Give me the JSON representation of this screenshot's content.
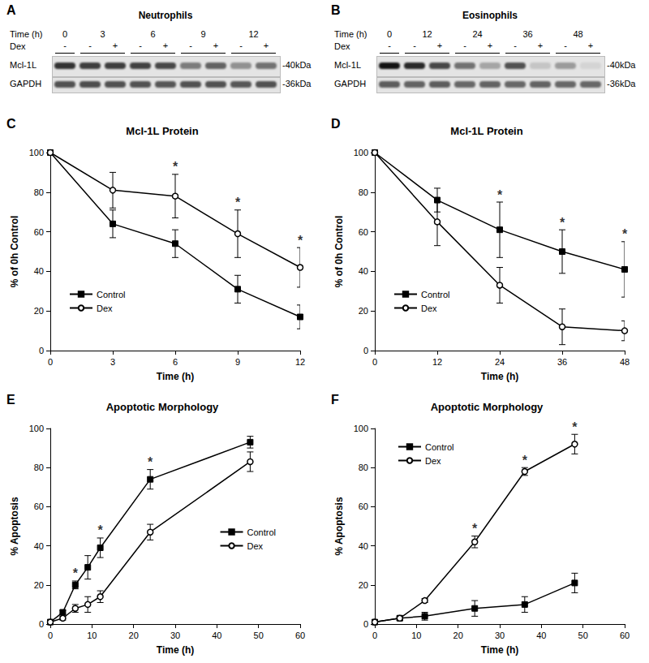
{
  "blots": [
    {
      "panel": "A",
      "title": "Neutrophils",
      "time_label": "Time (h)",
      "times": [
        0,
        3,
        6,
        9,
        12
      ],
      "treatment_label": "Dex",
      "lanes": [
        "-",
        "-",
        "+",
        "-",
        "+",
        "-",
        "+",
        "-",
        "+"
      ],
      "rows": [
        {
          "label": "Mcl-1L",
          "size": "-40kDa"
        },
        {
          "label": "GAPDH",
          "size": "-36kDa"
        }
      ]
    },
    {
      "panel": "B",
      "title": "Eosinophils",
      "time_label": "Time (h)",
      "times": [
        0,
        12,
        24,
        36,
        48
      ],
      "treatment_label": "Dex",
      "lanes": [
        "-",
        "-",
        "+",
        "-",
        "+",
        "-",
        "+",
        "-",
        "+"
      ],
      "rows": [
        {
          "label": "Mcl-1L",
          "size": "-40kDa"
        },
        {
          "label": "GAPDH",
          "size": "-36kDa"
        }
      ]
    }
  ],
  "chart_data": [
    {
      "panel": "C",
      "type": "line",
      "title": "Mcl-1L Protein",
      "x_label": "Time (h)",
      "y_label": "% of 0h Control",
      "xlim": [
        0,
        12
      ],
      "xticks": [
        0,
        3,
        6,
        9,
        12
      ],
      "ylim": [
        0,
        100
      ],
      "yticks": [
        0,
        20,
        40,
        60,
        80,
        100
      ],
      "grid": false,
      "legend": "lower left",
      "series": [
        {
          "name": "Control",
          "color": "#000000",
          "marker": "square",
          "x": [
            0,
            3,
            6,
            9,
            12
          ],
          "values": [
            100,
            64,
            54,
            31,
            17
          ],
          "error": [
            0,
            7,
            7,
            7,
            6
          ]
        },
        {
          "name": "Dex",
          "color": "#000000",
          "marker": "open_circle",
          "x": [
            0,
            3,
            6,
            9,
            12
          ],
          "values": [
            100,
            81,
            78,
            59,
            42
          ],
          "error": [
            0,
            9,
            11,
            12,
            10
          ]
        }
      ],
      "annotations": [
        {
          "x": 6,
          "text": "*"
        },
        {
          "x": 9,
          "text": "*"
        },
        {
          "x": 12,
          "text": "*"
        }
      ]
    },
    {
      "panel": "D",
      "type": "line",
      "title": "Mcl-1L Protein",
      "x_label": "Time (h)",
      "y_label": "% of 0h Control",
      "xlim": [
        0,
        48
      ],
      "xticks": [
        0,
        12,
        24,
        36,
        48
      ],
      "ylim": [
        0,
        100
      ],
      "yticks": [
        0,
        20,
        40,
        60,
        80,
        100
      ],
      "grid": false,
      "legend": "lower left",
      "series": [
        {
          "name": "Control",
          "color": "#000000",
          "marker": "square",
          "x": [
            0,
            12,
            24,
            36,
            48
          ],
          "values": [
            100,
            76,
            61,
            50,
            41
          ],
          "error": [
            0,
            6,
            14,
            11,
            14
          ]
        },
        {
          "name": "Dex",
          "color": "#000000",
          "marker": "open_circle",
          "x": [
            0,
            12,
            24,
            36,
            48
          ],
          "values": [
            100,
            65,
            33,
            12,
            10
          ],
          "error": [
            0,
            12,
            9,
            9,
            5
          ]
        }
      ],
      "annotations": [
        {
          "x": 24,
          "text": "*"
        },
        {
          "x": 36,
          "text": "*"
        },
        {
          "x": 48,
          "text": "*"
        }
      ]
    },
    {
      "panel": "E",
      "type": "line",
      "title": "Apoptotic Morphology",
      "x_label": "Time (h)",
      "y_label": "% Apoptosis",
      "xlim": [
        0,
        60
      ],
      "xticks": [
        0,
        10,
        20,
        30,
        40,
        50,
        60
      ],
      "ylim": [
        0,
        100
      ],
      "yticks": [
        0,
        20,
        40,
        60,
        80,
        100
      ],
      "grid": false,
      "legend": "right",
      "series": [
        {
          "name": "Control",
          "color": "#000000",
          "marker": "square",
          "x": [
            0,
            3,
            6,
            9,
            12,
            24,
            48
          ],
          "values": [
            1,
            6,
            20,
            29,
            39,
            74,
            93
          ],
          "error": [
            0,
            1,
            2,
            6,
            5,
            5,
            3
          ]
        },
        {
          "name": "Dex",
          "color": "#000000",
          "marker": "open_circle",
          "x": [
            0,
            3,
            6,
            9,
            12,
            24,
            48
          ],
          "values": [
            1,
            3,
            8,
            10,
            14,
            47,
            83
          ],
          "error": [
            0,
            1,
            2,
            4,
            3,
            4,
            5
          ]
        }
      ],
      "annotations": [
        {
          "x": 6,
          "text": "*"
        },
        {
          "x": 12,
          "text": "*"
        },
        {
          "x": 24,
          "text": "*"
        }
      ]
    },
    {
      "panel": "F",
      "type": "line",
      "title": "Apoptotic Morphology",
      "x_label": "Time (h)",
      "y_label": "% Apoptosis",
      "xlim": [
        0,
        60
      ],
      "xticks": [
        0,
        10,
        20,
        30,
        40,
        50,
        60
      ],
      "ylim": [
        0,
        100
      ],
      "yticks": [
        0,
        20,
        40,
        60,
        80,
        100
      ],
      "grid": false,
      "legend": "upper left",
      "series": [
        {
          "name": "Control",
          "color": "#000000",
          "marker": "square",
          "x": [
            0,
            6,
            12,
            24,
            36,
            48
          ],
          "values": [
            1,
            3,
            4,
            8,
            10,
            21
          ],
          "error": [
            0,
            1,
            2,
            4,
            4,
            5
          ]
        },
        {
          "name": "Dex",
          "color": "#000000",
          "marker": "open_circle",
          "x": [
            0,
            6,
            12,
            24,
            36,
            48
          ],
          "values": [
            1,
            3,
            12,
            42,
            78,
            92
          ],
          "error": [
            0,
            1,
            1,
            3,
            2,
            5
          ]
        }
      ],
      "annotations": [
        {
          "x": 24,
          "text": "*"
        },
        {
          "x": 36,
          "text": "*"
        },
        {
          "x": 48,
          "text": "*"
        }
      ]
    }
  ]
}
